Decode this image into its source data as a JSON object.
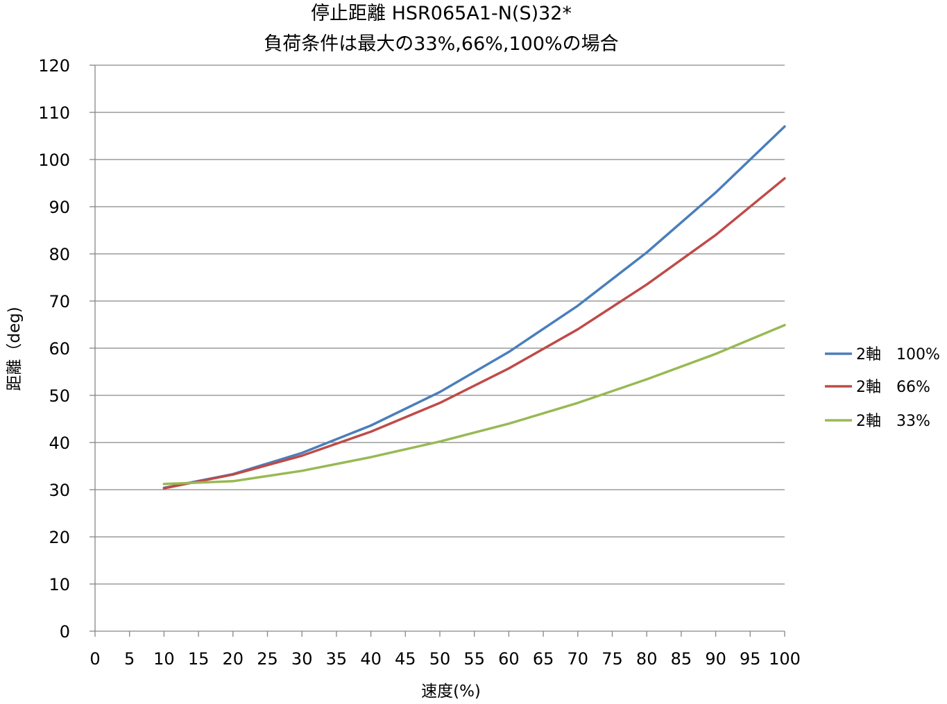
{
  "chart_data": {
    "type": "line",
    "title_lines": [
      "停止距離 HSR065A1-N(S)32*",
      "負荷条件は最大の33%,66%,100%の場合"
    ],
    "xlabel": "速度(%)",
    "ylabel": "距離（deg)",
    "xlim": [
      0,
      100
    ],
    "ylim": [
      0,
      120
    ],
    "x_ticks": [
      "0",
      "5",
      "10",
      "15",
      "20",
      "25",
      "30",
      "35",
      "40",
      "45",
      "50",
      "55",
      "60",
      "65",
      "70",
      "75",
      "80",
      "85",
      "90",
      "95",
      "100"
    ],
    "y_ticks": [
      "0",
      "10",
      "20",
      "30",
      "40",
      "50",
      "60",
      "70",
      "80",
      "90",
      "100",
      "110",
      "120"
    ],
    "grid": "horizontal",
    "legend_position": "right",
    "x": [
      10,
      20,
      30,
      40,
      50,
      60,
      70,
      80,
      90,
      100
    ],
    "series": [
      {
        "name": "2軸　100%",
        "color": "#4a7ebb",
        "values": [
          30.4,
          33.3,
          37.8,
          43.6,
          50.7,
          59.2,
          69.0,
          80.3,
          93.0,
          107.0
        ]
      },
      {
        "name": "2軸　66%",
        "color": "#be4b48",
        "values": [
          30.3,
          33.2,
          37.2,
          42.3,
          48.4,
          55.7,
          64.0,
          73.5,
          84.0,
          96.0
        ]
      },
      {
        "name": "2軸　33%",
        "color": "#98b954",
        "values": [
          31.2,
          31.8,
          34.0,
          36.9,
          40.2,
          44.0,
          48.4,
          53.4,
          58.8,
          64.9
        ]
      }
    ]
  }
}
